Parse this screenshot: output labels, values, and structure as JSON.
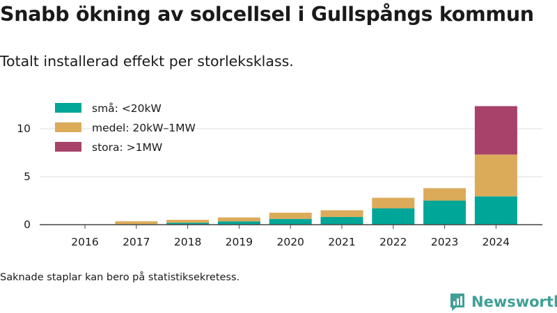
{
  "title": "Snabb ökning av solcellsel i Gullspångs kommun",
  "subtitle": "Totalt installerad effekt per storleksklass.",
  "footnote": "Saknade staplar kan bero på statistiksekretess.",
  "brand": {
    "name": "Newsworthy",
    "color": "#3fa096",
    "icon": "newsworthy-logo-icon"
  },
  "chart_data": {
    "type": "bar",
    "stacked": true,
    "categories": [
      "2016",
      "2017",
      "2018",
      "2019",
      "2020",
      "2021",
      "2022",
      "2023",
      "2024"
    ],
    "series": [
      {
        "name": "små: <20kW",
        "color": "#00a698",
        "values": [
          0.0,
          0.05,
          0.2,
          0.35,
          0.6,
          0.8,
          1.7,
          2.5,
          2.95
        ]
      },
      {
        "name": "medel: 20kW–1MW",
        "color": "#dcab5a",
        "values": [
          0.0,
          0.3,
          0.3,
          0.4,
          0.65,
          0.7,
          1.1,
          1.3,
          4.35
        ]
      },
      {
        "name": "stora: >1MW",
        "color": "#a8426a",
        "values": [
          0.0,
          0.0,
          0.0,
          0.0,
          0.0,
          0.0,
          0.0,
          0.0,
          5.05
        ]
      }
    ],
    "yticks": [
      0,
      5,
      10
    ],
    "ylim": [
      0,
      12.4
    ],
    "grid": true,
    "legend_position": "top-left"
  }
}
